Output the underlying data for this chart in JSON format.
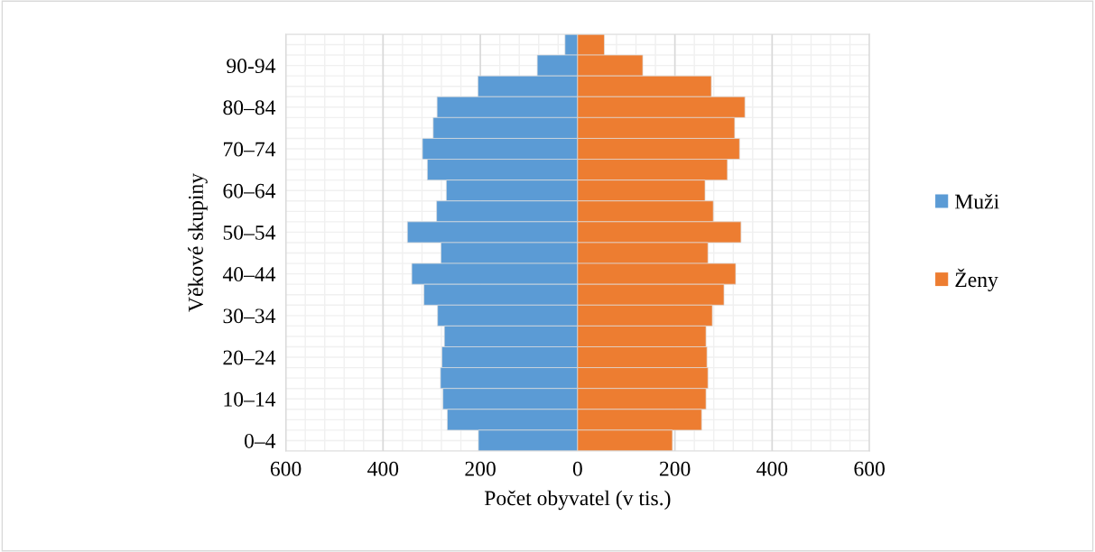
{
  "chart_data": {
    "type": "bar",
    "orientation": "horizontal",
    "stacked": true,
    "xlabel": "Počet obyvatel (v tis.)",
    "ylabel": "Věkové skupiny",
    "categories": [
      null,
      "90-94",
      null,
      "80–84",
      null,
      "70–74",
      null,
      "60–64",
      null,
      "50–54",
      null,
      "40–44",
      null,
      "30–34",
      null,
      "20–24",
      null,
      "10–14",
      null,
      "0–4"
    ],
    "series": [
      {
        "name": "Muži",
        "color": "#5b9bd5",
        "values": [
          -26,
          -83,
          -205,
          -289,
          -297,
          -319,
          -309,
          -270,
          -290,
          -350,
          -281,
          -341,
          -316,
          -288,
          -274,
          -279,
          -282,
          -277,
          -268,
          -204
        ]
      },
      {
        "name": "Ženy",
        "color": "#ed7d31",
        "values": [
          55,
          134,
          275,
          344,
          323,
          333,
          308,
          262,
          279,
          336,
          268,
          325,
          301,
          277,
          264,
          266,
          268,
          264,
          255,
          195
        ]
      }
    ],
    "xlim": [
      -600,
      600
    ],
    "xticks": [
      {
        "value": -600,
        "label": "600"
      },
      {
        "value": -400,
        "label": "400"
      },
      {
        "value": -200,
        "label": "200"
      },
      0,
      200,
      400,
      600
    ],
    "grid": true,
    "legend": "right"
  }
}
